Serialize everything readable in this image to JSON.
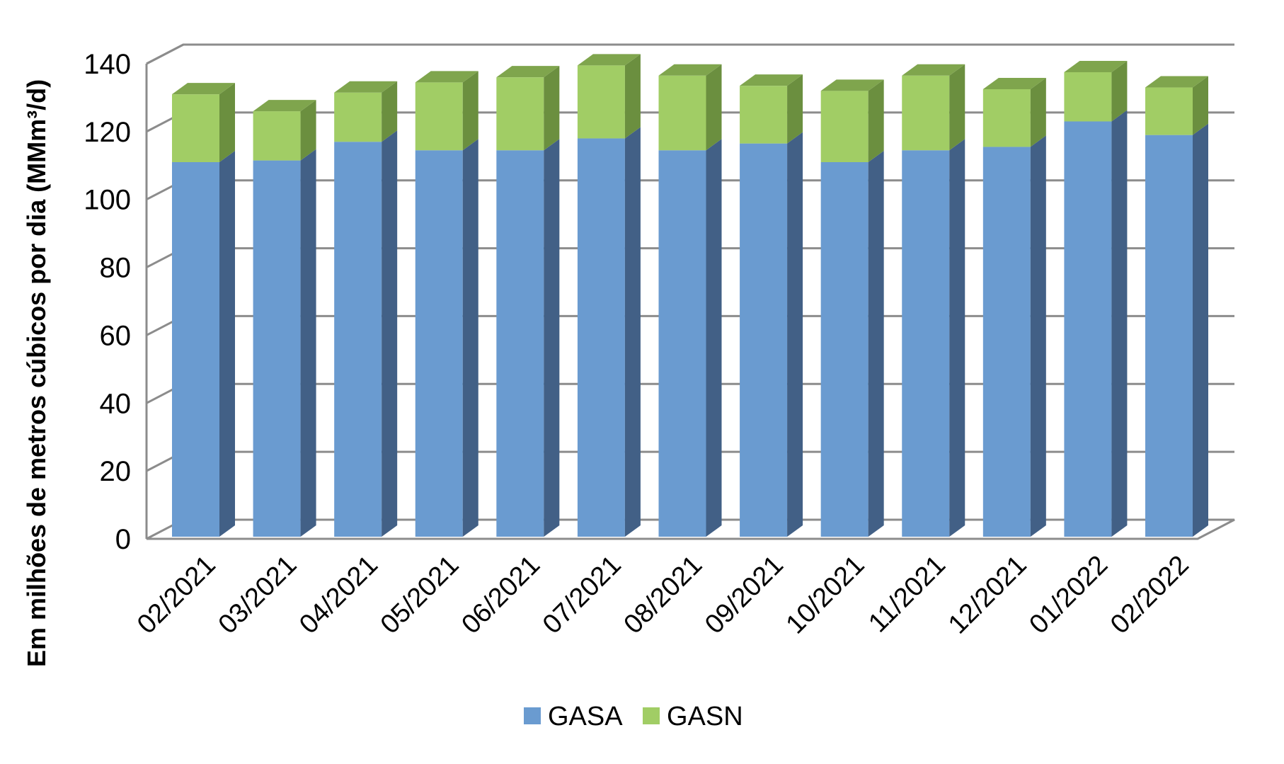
{
  "chart_data": {
    "type": "bar",
    "stacked": true,
    "three_d": true,
    "title": "",
    "xlabel": "",
    "ylabel": "Em milhões de metros cúbicos por dia (MMm³/d)",
    "ylim": [
      0,
      140
    ],
    "yticks": [
      "0",
      "20",
      "40",
      "60",
      "80",
      "100",
      "120",
      "140"
    ],
    "grid": true,
    "legend_position": "bottom",
    "categories": [
      "02/2021",
      "03/2021",
      "04/2021",
      "05/2021",
      "06/2021",
      "07/2021",
      "08/2021",
      "09/2021",
      "10/2021",
      "11/2021",
      "12/2021",
      "01/2022",
      "02/2022"
    ],
    "series": [
      {
        "name": "GASA",
        "color": "#6a9bd0",
        "side_color": "#426086",
        "top_color": "#5880b2",
        "values": [
          111,
          111.5,
          117,
          114.5,
          114.5,
          118,
          114.5,
          116.5,
          111,
          114.5,
          115.5,
          123,
          119
        ]
      },
      {
        "name": "GASN",
        "color": "#a1cd65",
        "side_color": "#6b8f3f",
        "top_color": "#7fa54d",
        "values": [
          20,
          14.5,
          14.5,
          20,
          21.5,
          21.5,
          22,
          17,
          21,
          22,
          17,
          14.5,
          14
        ]
      }
    ]
  }
}
